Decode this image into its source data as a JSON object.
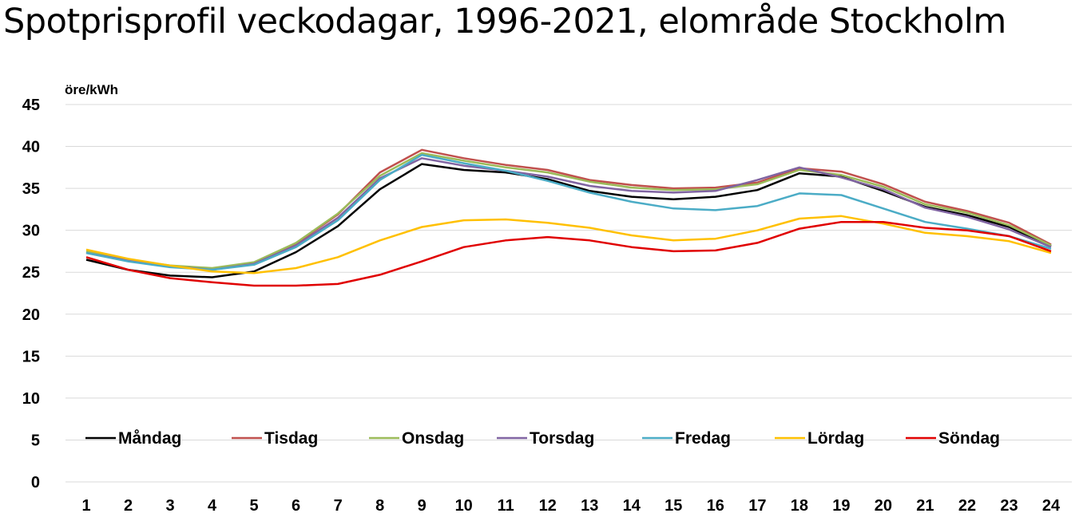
{
  "chart_data": {
    "type": "line",
    "title": "Spotprisprofil veckodagar, 1996-2021, elområde Stockholm",
    "ylabel": "öre/kWh",
    "xlabel": "",
    "ylim": [
      0,
      45
    ],
    "yticks": [
      "0",
      "5",
      "10",
      "15",
      "20",
      "25",
      "30",
      "35",
      "40",
      "45"
    ],
    "x": [
      "1",
      "2",
      "3",
      "4",
      "5",
      "6",
      "7",
      "8",
      "9",
      "10",
      "11",
      "12",
      "13",
      "14",
      "15",
      "16",
      "17",
      "18",
      "19",
      "20",
      "21",
      "22",
      "23",
      "24"
    ],
    "grid": "horizontal",
    "legend_position": "bottom-inside",
    "series": [
      {
        "name": "Måndag",
        "color": "#000000",
        "values": [
          26.5,
          25.3,
          24.6,
          24.4,
          25.1,
          27.4,
          30.5,
          34.9,
          37.9,
          37.2,
          36.9,
          36.1,
          34.7,
          34.0,
          33.7,
          34.0,
          34.8,
          36.8,
          36.4,
          34.7,
          32.8,
          31.8,
          30.4,
          28.1
        ]
      },
      {
        "name": "Tisdag",
        "color": "#c0504d",
        "values": [
          27.4,
          26.4,
          25.7,
          25.4,
          26.1,
          28.4,
          31.9,
          36.9,
          39.6,
          38.6,
          37.8,
          37.2,
          36.0,
          35.4,
          35.0,
          35.1,
          35.7,
          37.4,
          37.0,
          35.5,
          33.4,
          32.3,
          30.9,
          28.3
        ]
      },
      {
        "name": "Onsdag",
        "color": "#9bbb59",
        "values": [
          27.5,
          26.5,
          25.8,
          25.5,
          26.2,
          28.5,
          32.0,
          36.5,
          39.2,
          38.3,
          37.5,
          36.9,
          35.8,
          35.1,
          34.8,
          34.9,
          35.5,
          37.2,
          36.6,
          35.2,
          33.1,
          32.1,
          30.6,
          28.2
        ]
      },
      {
        "name": "Torsdag",
        "color": "#8064a2",
        "values": [
          27.3,
          26.4,
          25.7,
          25.3,
          26.0,
          28.2,
          31.5,
          36.2,
          38.6,
          37.7,
          37.1,
          36.4,
          35.3,
          34.7,
          34.5,
          34.7,
          36.0,
          37.5,
          36.3,
          34.9,
          32.7,
          31.6,
          30.1,
          28.0
        ]
      },
      {
        "name": "Fredag",
        "color": "#4bacc6",
        "values": [
          27.3,
          26.3,
          25.6,
          25.3,
          25.9,
          28.0,
          31.2,
          36.0,
          39.0,
          38.0,
          37.1,
          35.9,
          34.5,
          33.4,
          32.6,
          32.4,
          32.9,
          34.4,
          34.2,
          32.6,
          31.0,
          30.2,
          29.3,
          27.8
        ]
      },
      {
        "name": "Lördag",
        "color": "#ffc000",
        "values": [
          27.7,
          26.6,
          25.8,
          25.1,
          24.9,
          25.5,
          26.8,
          28.8,
          30.4,
          31.2,
          31.3,
          30.9,
          30.3,
          29.4,
          28.8,
          29.0,
          30.0,
          31.4,
          31.7,
          30.8,
          29.7,
          29.3,
          28.7,
          27.3
        ]
      },
      {
        "name": "Söndag",
        "color": "#e00000",
        "values": [
          26.8,
          25.3,
          24.3,
          23.8,
          23.4,
          23.4,
          23.6,
          24.7,
          26.3,
          28.0,
          28.8,
          29.2,
          28.8,
          28.0,
          27.5,
          27.6,
          28.5,
          30.2,
          31.0,
          31.0,
          30.3,
          30.0,
          29.3,
          27.5
        ]
      }
    ]
  }
}
